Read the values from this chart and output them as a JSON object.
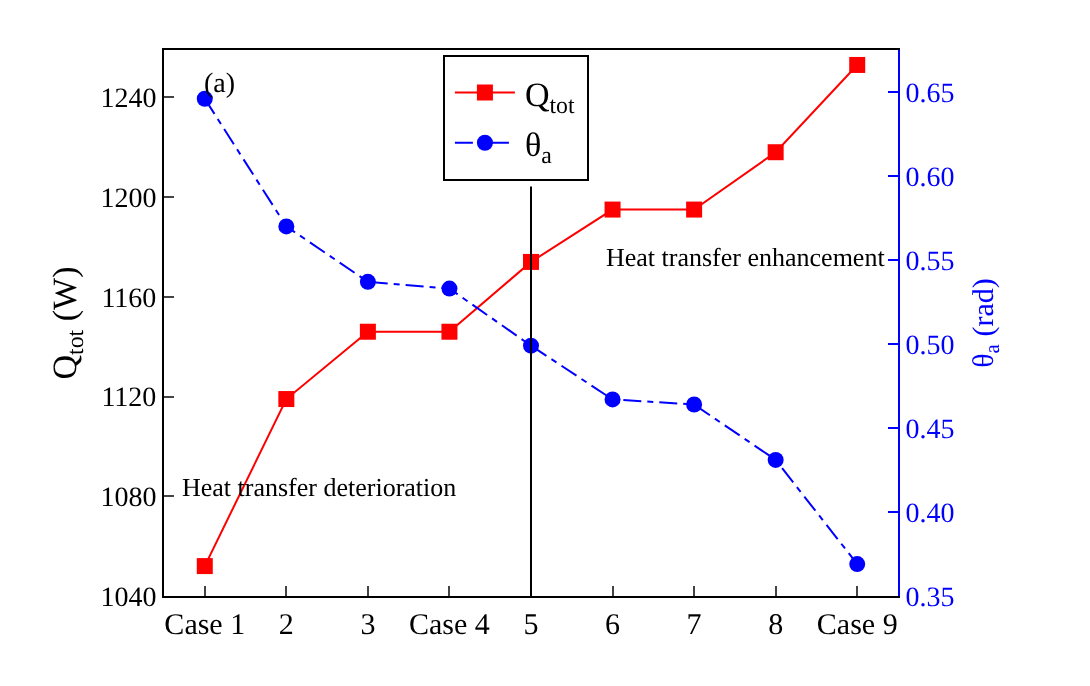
{
  "chart_data": {
    "type": "line",
    "categories": [
      "Case 1",
      "2",
      "3",
      "Case 4",
      "5",
      "6",
      "7",
      "8",
      "Case 9"
    ],
    "series": [
      {
        "name": "Q$_{tot}$",
        "color": "#ff0000",
        "marker": "square",
        "line_style": "solid",
        "values": [
          1052,
          1119,
          1146,
          1146,
          1174,
          1195,
          1195,
          1218,
          1253
        ]
      },
      {
        "name": "θ$_{a}$",
        "color": "#0000ff",
        "marker": "circle",
        "line_style": "dashed",
        "axis": "y2",
        "values": [
          0.646,
          0.57,
          0.537,
          0.533,
          0.499,
          0.467,
          0.464,
          0.431,
          0.369
        ]
      }
    ],
    "ylabel": "Q$_{tot}$ (W)",
    "y2label": "θ$_{a}$ (rad)",
    "ylim": [
      1040,
      1259
    ],
    "yticks": [
      1040,
      1080,
      1120,
      1160,
      1200,
      1240
    ],
    "y2lim": [
      0.35,
      0.675
    ],
    "y2ticks": [
      {
        "value": 0.35,
        "label": "0.35"
      },
      {
        "value": 0.4,
        "label": "0.40"
      },
      {
        "value": 0.45,
        "label": "0.45"
      },
      {
        "value": 0.5,
        "label": "0.50"
      },
      {
        "value": 0.55,
        "label": "0.55"
      },
      {
        "value": 0.6,
        "label": "0.60"
      },
      {
        "value": 0.65,
        "label": "0.65"
      }
    ],
    "ref_lines": [
      {
        "axis": "x",
        "value": "5",
        "color": "#000000"
      }
    ],
    "annotations": [
      "(a)",
      "Heat transfer deterioration",
      "Heat transfer enhancement"
    ],
    "legend": "top",
    "grid": false
  }
}
